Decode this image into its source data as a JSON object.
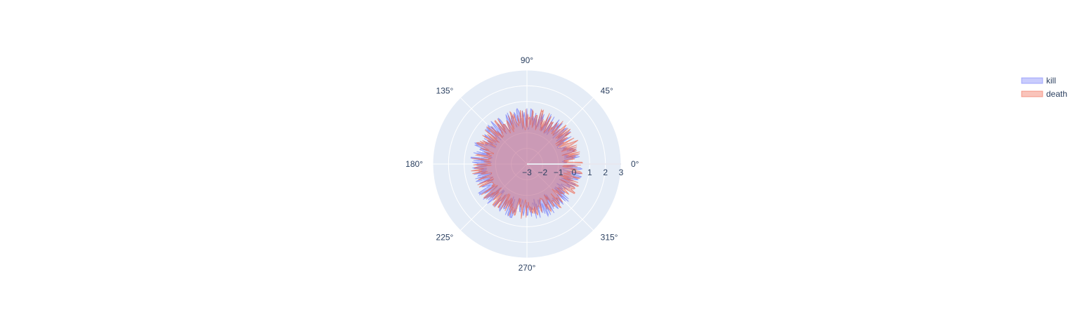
{
  "chart_data": {
    "type": "polar-area",
    "title": "",
    "angular_axis": {
      "tick_labels": [
        "0°",
        "45°",
        "90°",
        "135°",
        "180°",
        "225°",
        "270°",
        "315°"
      ],
      "tick_values_deg": [
        0,
        45,
        90,
        135,
        180,
        225,
        270,
        315
      ],
      "direction": "counterclockwise"
    },
    "radial_axis": {
      "range": [
        -3,
        3
      ],
      "tick_values": [
        -3,
        -2,
        -1,
        0,
        1,
        2,
        3
      ],
      "tick_labels": [
        "−3",
        "−2",
        "−1",
        "0",
        "1",
        "2",
        "3"
      ],
      "angle_deg": 0
    },
    "background_color": "#e5ecf6",
    "grid": true,
    "legend": {
      "placement": "top-right"
    },
    "series": [
      {
        "name": "kill",
        "color": "#636efa",
        "fill_opacity": 0.35,
        "n_points": 360,
        "r_min": -0.8,
        "r_max": 0.6
      },
      {
        "name": "death",
        "color": "#ef553b",
        "fill_opacity": 0.35,
        "n_points": 360,
        "r_min": -0.8,
        "r_max": 0.6
      }
    ]
  }
}
